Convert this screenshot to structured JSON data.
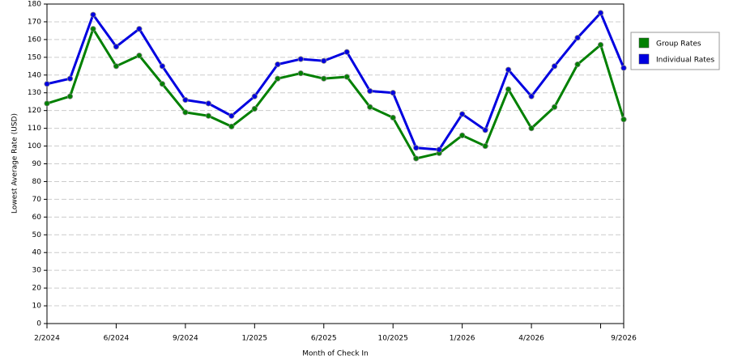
{
  "chart_data": {
    "type": "line",
    "x_label": "Month of Check In",
    "y_label": "Lowest Average Rate (USD)",
    "categories": [
      "2/2024",
      null,
      null,
      "6/2024",
      null,
      null,
      "9/2024",
      null,
      null,
      "1/2025",
      null,
      null,
      "6/2025",
      null,
      null,
      "10/2025",
      null,
      null,
      "1/2026",
      null,
      null,
      "4/2026",
      null,
      null,
      null,
      "9/2026"
    ],
    "series": [
      {
        "name": "Group Rates",
        "color": "#008000",
        "values": [
          124,
          128,
          166,
          145,
          151,
          135,
          119,
          117,
          111,
          121,
          138,
          141,
          138,
          139,
          122,
          116,
          93,
          96,
          106,
          100,
          132,
          110,
          122,
          146,
          157,
          115
        ]
      },
      {
        "name": "Individual Rates",
        "color": "#0000e0",
        "values": [
          135,
          138,
          174,
          156,
          166,
          145,
          126,
          124,
          117,
          128,
          146,
          149,
          148,
          153,
          131,
          130,
          99,
          98,
          118,
          109,
          143,
          128,
          145,
          161,
          175,
          144
        ]
      }
    ],
    "ylim": [
      0,
      180
    ],
    "yticks": [
      0,
      10,
      20,
      30,
      40,
      50,
      60,
      70,
      80,
      90,
      100,
      110,
      120,
      130,
      140,
      150,
      160,
      170,
      180
    ],
    "grid": true,
    "legend": "right"
  }
}
